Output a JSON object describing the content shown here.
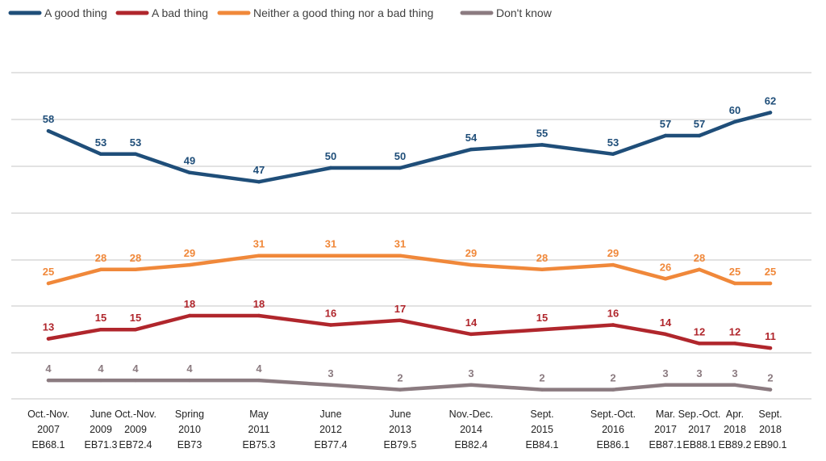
{
  "chart_data": {
    "type": "line",
    "title": "",
    "xlabel": "",
    "ylabel": "",
    "ylim": [
      0,
      70
    ],
    "grid": true,
    "legend_position": "top-left",
    "categories": [
      [
        "Oct.-Nov.",
        "2007",
        "EB68.1"
      ],
      [
        "June",
        "2009",
        "EB71.3"
      ],
      [
        "Oct.-Nov.",
        "2009",
        "EB72.4"
      ],
      [
        "Spring",
        "2010",
        "EB73"
      ],
      [
        "May",
        "2011",
        "EB75.3"
      ],
      [
        "June",
        "2012",
        "EB77.4"
      ],
      [
        "June",
        "2013",
        "EB79.5"
      ],
      [
        "Nov.-Dec.",
        "2014",
        "EB82.4"
      ],
      [
        "Sept.",
        "2015",
        "EB84.1"
      ],
      [
        "Sept.-Oct.",
        "2016",
        "EB86.1"
      ],
      [
        "Mar.",
        "2017",
        "EB87.1"
      ],
      [
        "Sep.-Oct.",
        "2017",
        "EB88.1"
      ],
      [
        "Apr.",
        "2018",
        "EB89.2"
      ],
      [
        "Sept.",
        "2018",
        "EB90.1"
      ]
    ],
    "series": [
      {
        "name": "A good thing",
        "color": "#1f4e79",
        "values": [
          58,
          53,
          53,
          49,
          47,
          50,
          50,
          54,
          55,
          53,
          57,
          57,
          60,
          62
        ]
      },
      {
        "name": "A bad thing",
        "color": "#b0262c",
        "values": [
          13,
          15,
          15,
          18,
          18,
          16,
          17,
          14,
          15,
          16,
          14,
          12,
          12,
          11
        ]
      },
      {
        "name": "Neither a good thing nor a bad thing",
        "color": "#f0883a",
        "values": [
          25,
          28,
          28,
          29,
          31,
          31,
          31,
          29,
          28,
          29,
          26,
          28,
          25,
          25
        ]
      },
      {
        "name": "Don't know",
        "color": "#8b7b80",
        "values": [
          4,
          4,
          4,
          4,
          4,
          3,
          2,
          3,
          2,
          2,
          3,
          3,
          3,
          2
        ]
      }
    ]
  }
}
